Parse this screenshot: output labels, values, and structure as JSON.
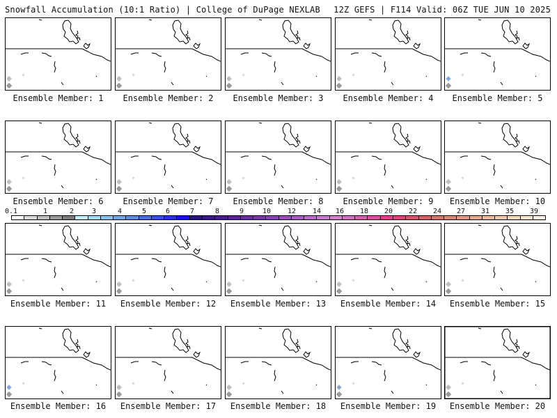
{
  "header": {
    "left_title": "Snowfall Accumulation (10:1 Ratio) | College of DuPage NEXLAB",
    "right_title": "12Z GEFS | F114 Valid: 06Z TUE JUN 10 2025"
  },
  "members": [
    {
      "caption": "Ensemble Member: 1"
    },
    {
      "caption": "Ensemble Member: 2"
    },
    {
      "caption": "Ensemble Member: 3"
    },
    {
      "caption": "Ensemble Member: 4"
    },
    {
      "caption": "Ensemble Member: 5"
    },
    {
      "caption": "Ensemble Member: 6"
    },
    {
      "caption": "Ensemble Member: 7"
    },
    {
      "caption": "Ensemble Member: 8"
    },
    {
      "caption": "Ensemble Member: 9"
    },
    {
      "caption": "Ensemble Member: 10"
    },
    {
      "caption": "Ensemble Member: 11"
    },
    {
      "caption": "Ensemble Member: 12"
    },
    {
      "caption": "Ensemble Member: 13"
    },
    {
      "caption": "Ensemble Member: 14"
    },
    {
      "caption": "Ensemble Member: 15"
    },
    {
      "caption": "Ensemble Member: 16"
    },
    {
      "caption": "Ensemble Member: 17"
    },
    {
      "caption": "Ensemble Member: 18"
    },
    {
      "caption": "Ensemble Member: 19"
    },
    {
      "caption": "Ensemble Member: 20"
    }
  ],
  "legend": {
    "labels": [
      "0.1",
      "1",
      "2",
      "3",
      "4",
      "5",
      "6",
      "7",
      "8",
      "9",
      "10",
      "12",
      "14",
      "16",
      "18",
      "20",
      "22",
      "24",
      "27",
      "31",
      "35",
      "39"
    ],
    "colors": [
      "#ffffff",
      "#d9d9d9",
      "#bdbdbd",
      "#9a9a9a",
      "#7b7b7b",
      "#bfeff5",
      "#9fdcf2",
      "#87c3ef",
      "#6ea6ea",
      "#5a8be8",
      "#4a6ee6",
      "#3a50e0",
      "#2a30dc",
      "#1a10d6",
      "#2a0f8c",
      "#3a1396",
      "#4a189e",
      "#5a1fa6",
      "#6a28ae",
      "#7a33b4",
      "#8a3fbc",
      "#9a4bc2",
      "#aa59c8",
      "#ba69cc",
      "#c878d0",
      "#d17ecc",
      "#d96cc0",
      "#dd5ab0",
      "#e04aa0",
      "#e23c8e",
      "#e0407c",
      "#dc4e6e",
      "#da5e64",
      "#dc706a",
      "#df8374",
      "#e3957f",
      "#e7a78c",
      "#ebb89a",
      "#efc8a9",
      "#f3d7ba",
      "#f6e4cc",
      "#fbf2e6"
    ]
  }
}
